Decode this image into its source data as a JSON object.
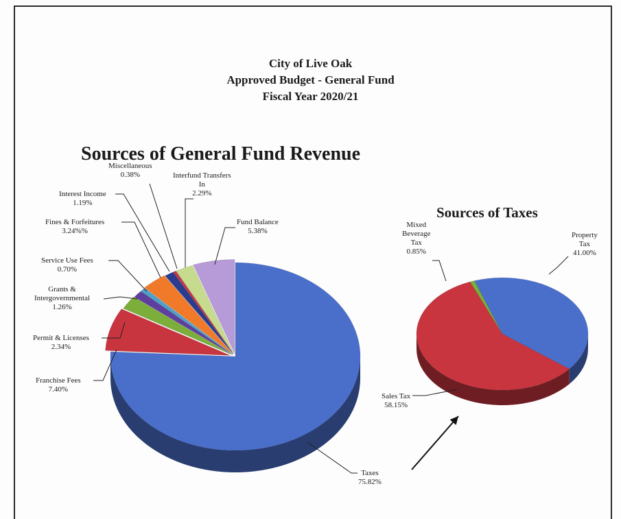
{
  "header": {
    "line1": "City of Live Oak",
    "line2": "Approved Budget - General Fund",
    "line3": "Fiscal Year 2020/21"
  },
  "colors": {
    "blue": "#4a6fcb",
    "red": "#c8353f",
    "green": "#7cae3b",
    "purple": "#5e3f9e",
    "lightblue": "#4fa0c8",
    "orange": "#f07a2a",
    "navy": "#2b3c8f",
    "lightgreen": "#c6db8d",
    "lavender": "#b79ad8"
  },
  "chart_data": [
    {
      "type": "pie",
      "title": "Sources of General Fund Revenue",
      "slices": [
        {
          "label_lines": [
            "Taxes",
            "75.82%"
          ],
          "value": 75.82,
          "color": "#4a6fcb"
        },
        {
          "label_lines": [
            "Franchise Fees",
            "7.40%"
          ],
          "value": 7.4,
          "color": "#c8353f"
        },
        {
          "label_lines": [
            "Permit & Licenses",
            "2.34%"
          ],
          "value": 2.34,
          "color": "#7cae3b"
        },
        {
          "label_lines": [
            "Grants &",
            "Intergovernmental",
            "1.26%"
          ],
          "value": 1.26,
          "color": "#5e3f9e"
        },
        {
          "label_lines": [
            "Service Use Fees",
            "0.70%"
          ],
          "value": 0.7,
          "color": "#4fa0c8"
        },
        {
          "label_lines": [
            "Fines & Forfeitures",
            "3.24%%"
          ],
          "value": 3.24,
          "color": "#f07a2a"
        },
        {
          "label_lines": [
            "Interest Income",
            "1.19%"
          ],
          "value": 1.19,
          "color": "#2b3c8f"
        },
        {
          "label_lines": [
            "Miscellaneous",
            "0.38%"
          ],
          "value": 0.38,
          "color": "#c8353f"
        },
        {
          "label_lines": [
            "Interfund Transfers",
            "In",
            "2.29%"
          ],
          "value": 2.29,
          "color": "#c6db8d"
        },
        {
          "label_lines": [
            "Fund Balance",
            "5.38%"
          ],
          "value": 5.38,
          "color": "#b79ad8"
        }
      ]
    },
    {
      "type": "pie",
      "title": "Sources of Taxes",
      "slices": [
        {
          "label_lines": [
            "Property",
            "Tax",
            "41.00%"
          ],
          "value": 41.0,
          "color": "#4a6fcb"
        },
        {
          "label_lines": [
            "Sales Tax",
            "58.15%"
          ],
          "value": 58.15,
          "color": "#c8353f"
        },
        {
          "label_lines": [
            "Mixed",
            "Beverage",
            "Tax",
            "0.85%"
          ],
          "value": 0.85,
          "color": "#7cae3b"
        }
      ]
    }
  ]
}
